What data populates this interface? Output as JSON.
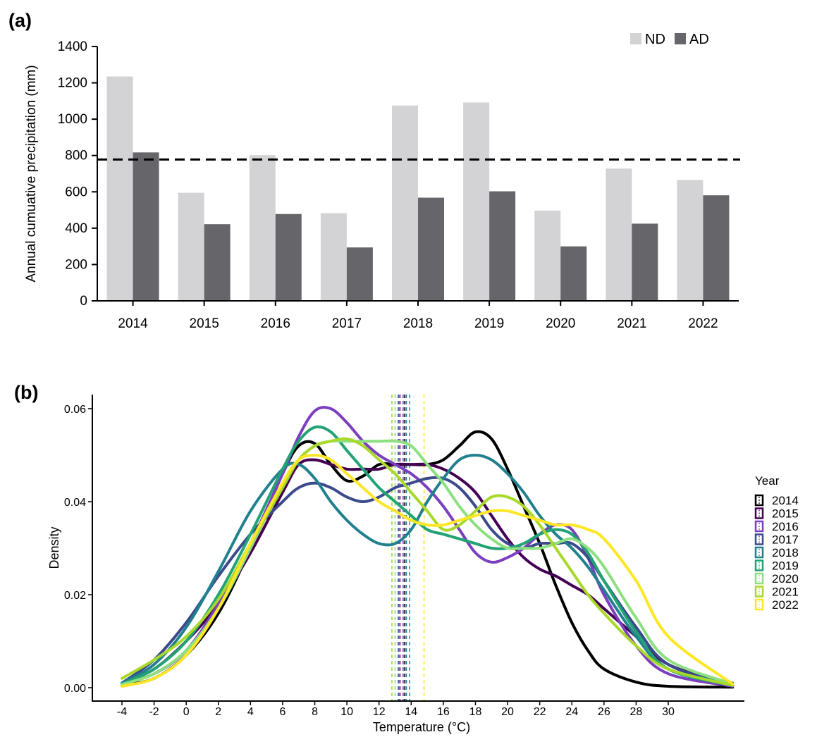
{
  "panels": {
    "a": "(a)",
    "b": "(b)"
  },
  "chart_data": [
    {
      "type": "bar",
      "categories": [
        "2014",
        "2015",
        "2016",
        "2017",
        "2018",
        "2019",
        "2020",
        "2021",
        "2022"
      ],
      "series": [
        {
          "name": "ND",
          "color": "#d3d3d5",
          "values": [
            1235,
            595,
            802,
            483,
            1075,
            1092,
            497,
            728,
            665
          ]
        },
        {
          "name": "AD",
          "color": "#66666a",
          "values": [
            817,
            422,
            478,
            294,
            568,
            603,
            300,
            425,
            581
          ]
        }
      ],
      "reference_line": {
        "value": 778,
        "style": "dashed",
        "color": "#000000"
      },
      "ylabel": "Annual cumuative precipitation (mm)",
      "ylim": [
        0,
        1400
      ],
      "yticks": [
        0,
        200,
        400,
        600,
        800,
        1000,
        1200,
        1400
      ],
      "grid": false,
      "legend": "top-right"
    },
    {
      "type": "line",
      "xlabel": "Temperature (°C)",
      "ylabel": "Density",
      "xlim": [
        -4,
        34
      ],
      "ylim": [
        0,
        0.062
      ],
      "xticks": [
        "-4",
        "-2",
        "0",
        "2",
        "4",
        "6",
        "8",
        "10",
        "12",
        "14",
        "16",
        "18",
        "20",
        "22",
        "24",
        "26",
        "28",
        "30"
      ],
      "yticks": [
        "0.00",
        "0.02",
        "0.04",
        "0.06"
      ],
      "grid": false,
      "legend_title": "Year",
      "legend": "right",
      "x": [
        -4,
        -2,
        0,
        2,
        4,
        6,
        7,
        8,
        9,
        10,
        11,
        12,
        13,
        14,
        15,
        16,
        17,
        18,
        19,
        20,
        21,
        22,
        23,
        24,
        25,
        26,
        28,
        30,
        34
      ],
      "series": [
        {
          "name": "2014",
          "color": "#000000",
          "mean": 13.6,
          "values": [
            0.0005,
            0.002,
            0.007,
            0.016,
            0.03,
            0.046,
            0.052,
            0.0525,
            0.048,
            0.0445,
            0.0455,
            0.048,
            0.048,
            0.048,
            0.048,
            0.049,
            0.052,
            0.055,
            0.0535,
            0.047,
            0.039,
            0.031,
            0.022,
            0.014,
            0.008,
            0.004,
            0.0012,
            0.0003,
            0.0001
          ]
        },
        {
          "name": "2015",
          "color": "#440154",
          "mean": 13.3,
          "values": [
            0.0008,
            0.004,
            0.01,
            0.018,
            0.029,
            0.042,
            0.048,
            0.049,
            0.048,
            0.047,
            0.047,
            0.047,
            0.048,
            0.048,
            0.048,
            0.047,
            0.045,
            0.042,
            0.037,
            0.032,
            0.028,
            0.0255,
            0.024,
            0.022,
            0.02,
            0.017,
            0.011,
            0.005,
            0.0005
          ]
        },
        {
          "name": "2016",
          "color": "#7b3fbf",
          "mean": 13.5,
          "values": [
            0.0008,
            0.003,
            0.008,
            0.018,
            0.031,
            0.046,
            0.054,
            0.0595,
            0.06,
            0.057,
            0.053,
            0.05,
            0.048,
            0.046,
            0.043,
            0.039,
            0.034,
            0.029,
            0.027,
            0.028,
            0.03,
            0.033,
            0.035,
            0.034,
            0.028,
            0.02,
            0.009,
            0.003,
            0.0003
          ]
        },
        {
          "name": "2017",
          "color": "#3b4a8c",
          "mean": 13.2,
          "values": [
            0.001,
            0.006,
            0.014,
            0.024,
            0.033,
            0.04,
            0.043,
            0.044,
            0.043,
            0.041,
            0.04,
            0.041,
            0.043,
            0.044,
            0.045,
            0.045,
            0.043,
            0.039,
            0.034,
            0.031,
            0.03,
            0.031,
            0.031,
            0.031,
            0.028,
            0.023,
            0.013,
            0.005,
            0.0005
          ]
        },
        {
          "name": "2018",
          "color": "#21808e",
          "mean": 13.7,
          "values": [
            0.001,
            0.005,
            0.013,
            0.025,
            0.038,
            0.047,
            0.048,
            0.045,
            0.04,
            0.036,
            0.033,
            0.031,
            0.031,
            0.034,
            0.04,
            0.045,
            0.049,
            0.05,
            0.049,
            0.046,
            0.042,
            0.037,
            0.033,
            0.03,
            0.026,
            0.021,
            0.011,
            0.004,
            0.001
          ]
        },
        {
          "name": "2019",
          "color": "#21a373",
          "mean": 13.9,
          "values": [
            0.0008,
            0.004,
            0.01,
            0.02,
            0.033,
            0.047,
            0.053,
            0.056,
            0.055,
            0.051,
            0.047,
            0.043,
            0.04,
            0.037,
            0.034,
            0.033,
            0.032,
            0.031,
            0.03,
            0.03,
            0.031,
            0.033,
            0.034,
            0.033,
            0.029,
            0.023,
            0.012,
            0.004,
            0.0005
          ]
        },
        {
          "name": "2020",
          "color": "#8de07f",
          "mean": 13.0,
          "values": [
            0.0007,
            0.003,
            0.008,
            0.017,
            0.03,
            0.044,
            0.049,
            0.052,
            0.053,
            0.053,
            0.053,
            0.053,
            0.053,
            0.052,
            0.048,
            0.044,
            0.039,
            0.035,
            0.032,
            0.03,
            0.03,
            0.03,
            0.031,
            0.032,
            0.03,
            0.026,
            0.015,
            0.006,
            0.0008
          ]
        },
        {
          "name": "2021",
          "color": "#a8d92a",
          "mean": 12.8,
          "values": [
            0.002,
            0.006,
            0.011,
            0.019,
            0.031,
            0.043,
            0.049,
            0.052,
            0.053,
            0.0535,
            0.052,
            0.049,
            0.046,
            0.042,
            0.038,
            0.034,
            0.035,
            0.038,
            0.041,
            0.041,
            0.039,
            0.035,
            0.03,
            0.025,
            0.02,
            0.016,
            0.009,
            0.004,
            0.0005
          ]
        },
        {
          "name": "2022",
          "color": "#fde725",
          "mean": 14.8,
          "values": [
            0.0003,
            0.002,
            0.007,
            0.017,
            0.031,
            0.044,
            0.049,
            0.05,
            0.049,
            0.046,
            0.043,
            0.04,
            0.038,
            0.036,
            0.035,
            0.035,
            0.036,
            0.037,
            0.038,
            0.038,
            0.037,
            0.036,
            0.035,
            0.035,
            0.034,
            0.032,
            0.023,
            0.011,
            0.0008
          ]
        }
      ]
    }
  ]
}
